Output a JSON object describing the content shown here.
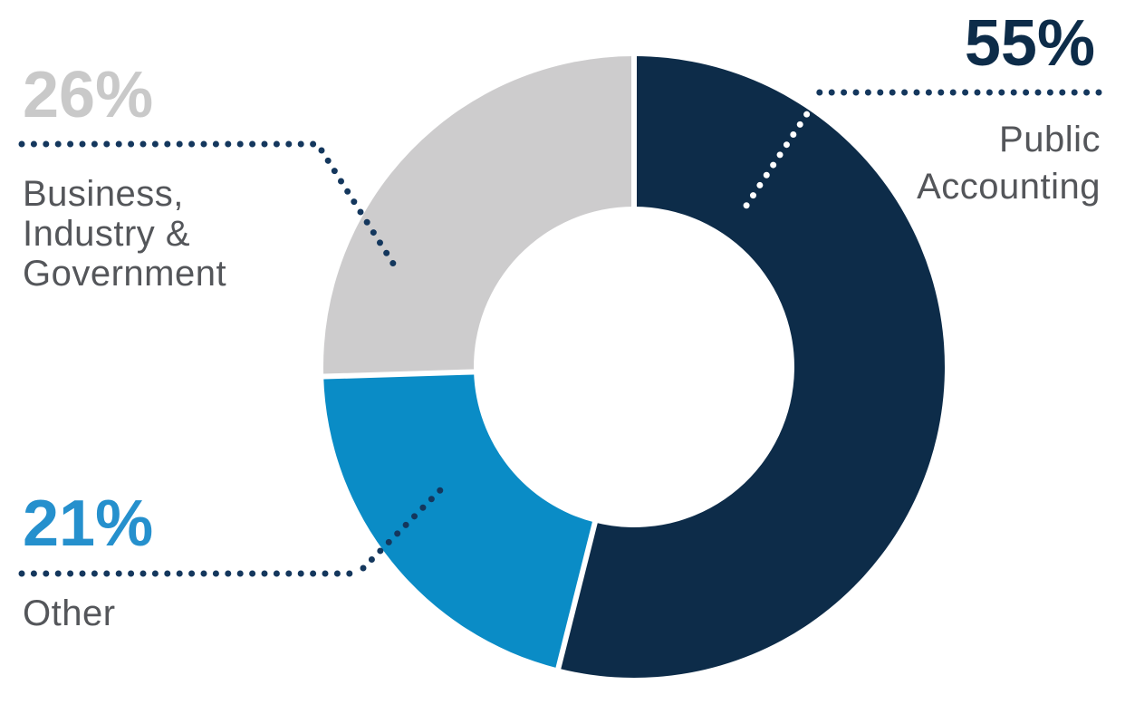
{
  "chart_data": {
    "type": "pie",
    "subtype": "donut",
    "title": "",
    "units": "percent",
    "direction": "clockwise",
    "start_angle_deg": 0,
    "segments": [
      {
        "label": "Public Accounting",
        "value": 55,
        "display": "55%",
        "color": "#0d2c49"
      },
      {
        "label": "Other",
        "value": 21,
        "display": "21%",
        "color": "#0a8cc6"
      },
      {
        "label": "Business, Industry & Government",
        "value": 26,
        "display": "26%",
        "color": "#cdcccd"
      }
    ],
    "separator_color": "#ffffff",
    "leader_dot_color": "#14375d",
    "leader_dot_color_on_dark": "#ffffff",
    "legend_position": "callouts-outside"
  },
  "callouts": {
    "public_accounting": {
      "pct": "55%",
      "pct_color": "#0d2c49",
      "line1": "Public",
      "line2": "Accounting",
      "text_color": "#54565a"
    },
    "big": {
      "pct": "26%",
      "pct_color": "#c9c9c9",
      "line1": "Business,",
      "line2": "Industry &",
      "line3": "Government",
      "text_color": "#54565a"
    },
    "other": {
      "pct": "21%",
      "pct_color": "#2590cd",
      "line1": "Other",
      "text_color": "#54565a"
    }
  }
}
